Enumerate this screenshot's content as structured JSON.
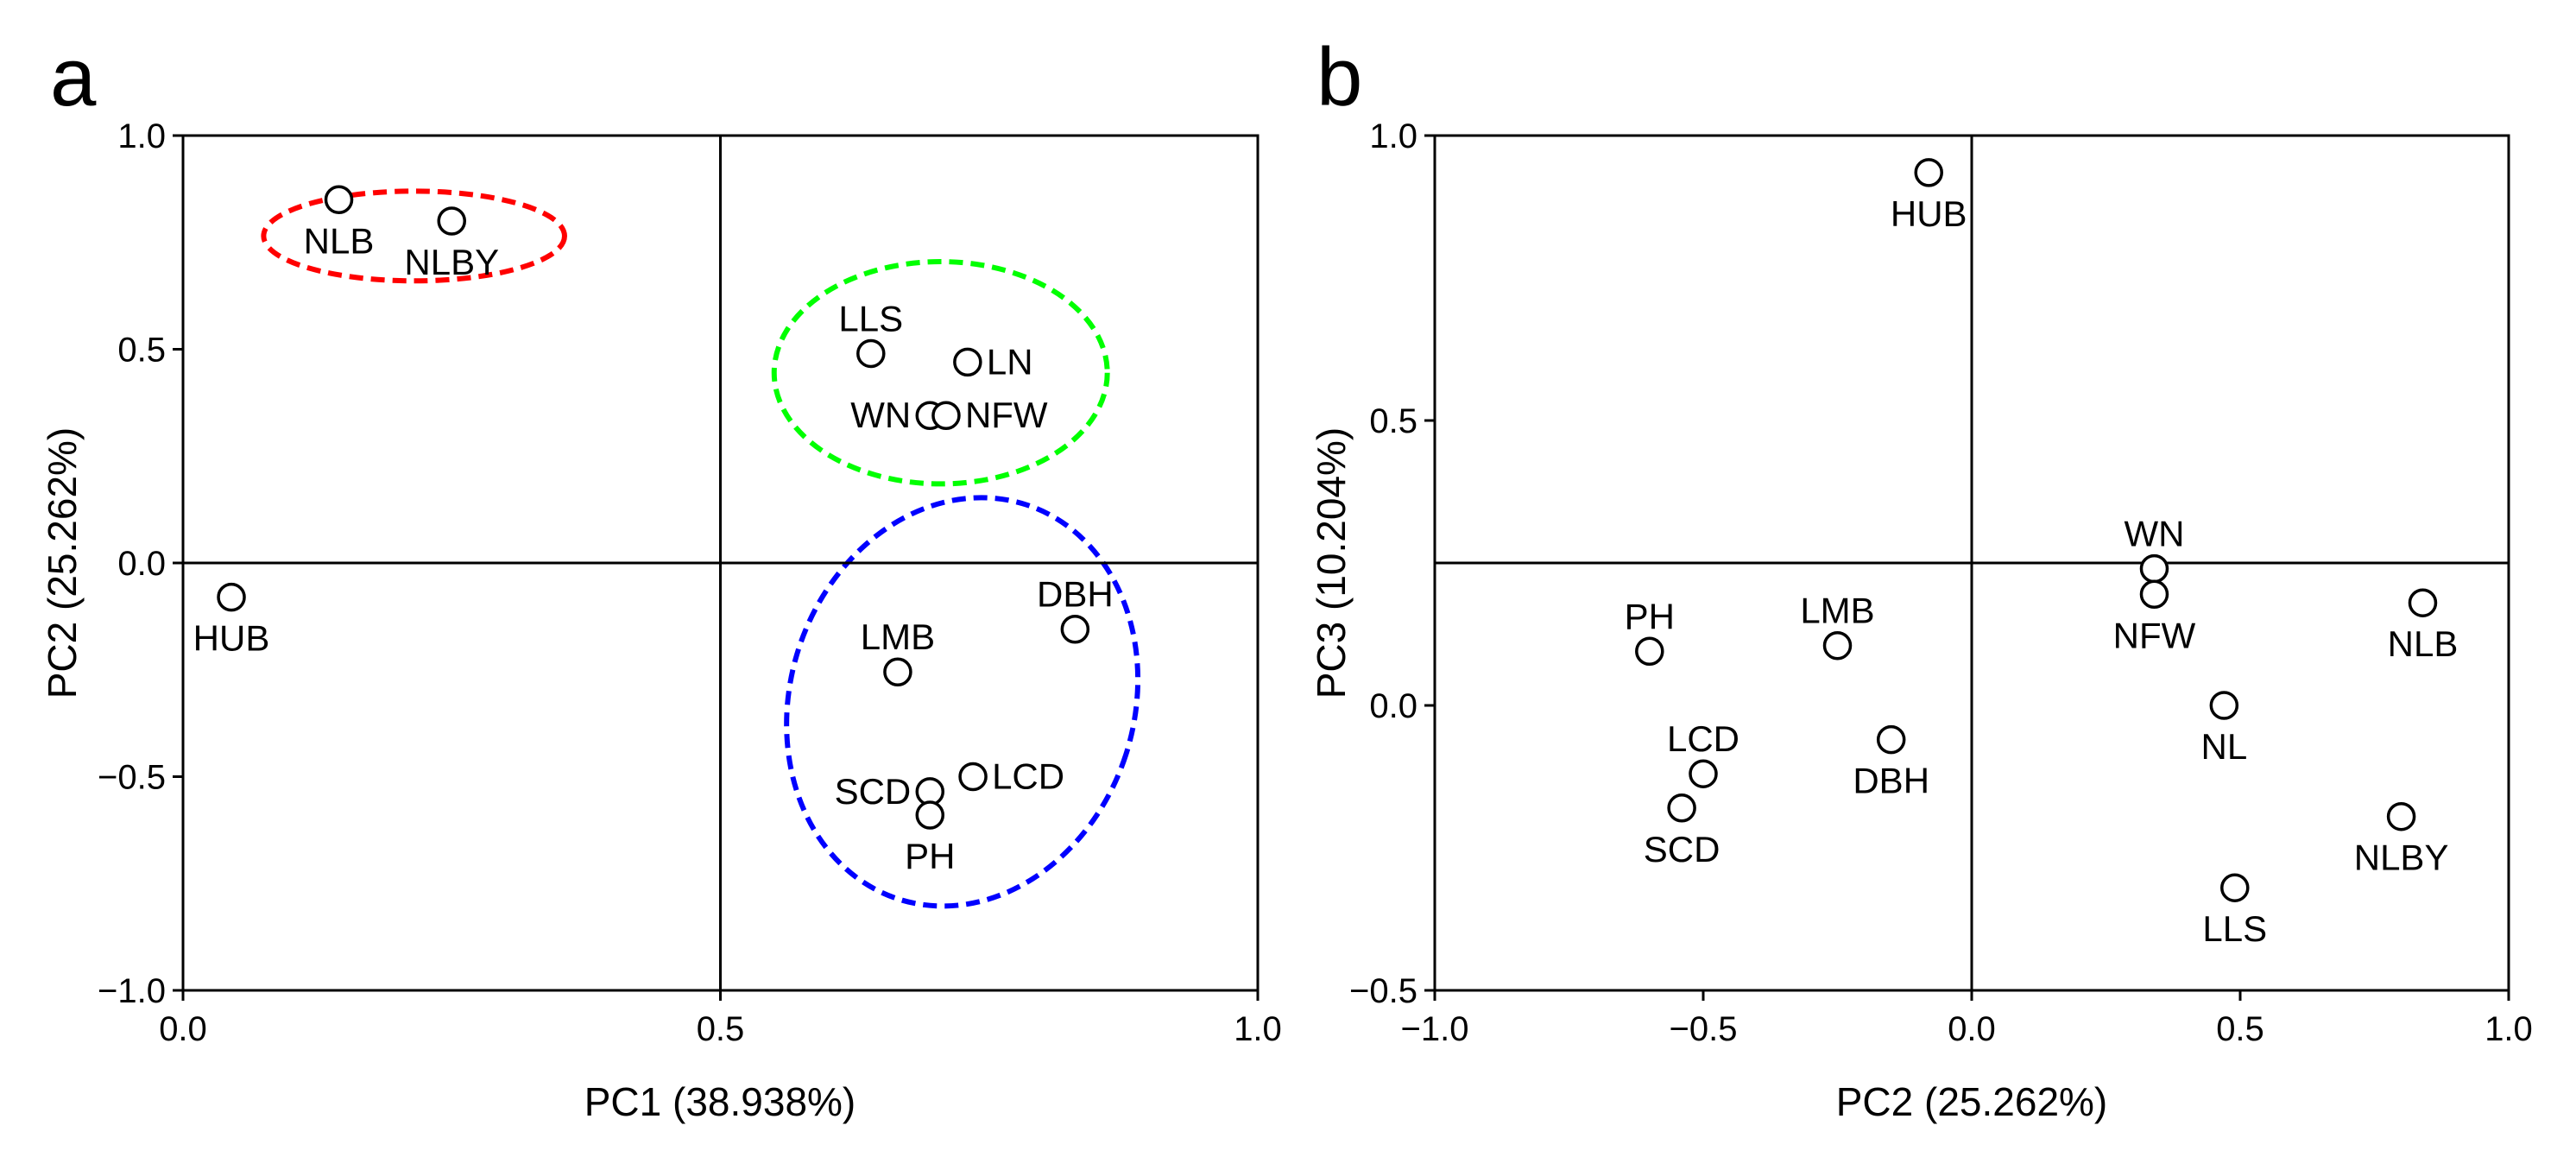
{
  "chart_data": [
    {
      "panel": "a",
      "type": "scatter",
      "xlabel": "PC1 (38.938%)",
      "ylabel": "PC2 (25.262%)",
      "xlim": [
        0.0,
        1.0
      ],
      "ylim": [
        -1.0,
        1.0
      ],
      "x_ticks": [
        0.0,
        0.5,
        1.0
      ],
      "x_tick_labels": [
        "0.0",
        "0.5",
        "1.0"
      ],
      "y_ticks": [
        1.0,
        0.5,
        0.0,
        -0.5,
        -1.0
      ],
      "y_tick_labels": [
        "1.0",
        "0.5",
        "0.0",
        "−0.5",
        "−1.0"
      ],
      "reference_lines": {
        "x": 0.5,
        "y": 0.0
      },
      "points": [
        {
          "label": "NLB",
          "x": 0.145,
          "y": 0.85,
          "label_pos": "below"
        },
        {
          "label": "NLBY",
          "x": 0.25,
          "y": 0.8,
          "label_pos": "below"
        },
        {
          "label": "LLS",
          "x": 0.64,
          "y": 0.49,
          "label_pos": "above"
        },
        {
          "label": "LN",
          "x": 0.73,
          "y": 0.47,
          "label_pos": "right"
        },
        {
          "label": "WN",
          "x": 0.695,
          "y": 0.345,
          "label_pos": "left"
        },
        {
          "label": "NFW",
          "x": 0.71,
          "y": 0.345,
          "label_pos": "right"
        },
        {
          "label": "HUB",
          "x": 0.045,
          "y": -0.08,
          "label_pos": "below"
        },
        {
          "label": "DBH",
          "x": 0.83,
          "y": -0.155,
          "label_pos": "above"
        },
        {
          "label": "LMB",
          "x": 0.665,
          "y": -0.255,
          "label_pos": "above"
        },
        {
          "label": "LCD",
          "x": 0.735,
          "y": -0.5,
          "label_pos": "right"
        },
        {
          "label": "SCD",
          "x": 0.695,
          "y": -0.535,
          "label_pos": "left"
        },
        {
          "label": "PH",
          "x": 0.695,
          "y": -0.59,
          "label_pos": "below"
        }
      ],
      "groups": [
        {
          "name": "red group",
          "color": "#ff0000",
          "members": [
            "NLB",
            "NLBY"
          ],
          "cx": 0.215,
          "cy": 0.765,
          "rx": 0.14,
          "ry": 0.105,
          "rotate": 0
        },
        {
          "name": "green group",
          "color": "#00ff00",
          "members": [
            "LLS",
            "LN",
            "WN",
            "NFW"
          ],
          "cx": 0.705,
          "cy": 0.445,
          "rx": 0.155,
          "ry": 0.26,
          "rotate": 0
        },
        {
          "name": "blue group",
          "color": "#0000ff",
          "members": [
            "DBH",
            "LMB",
            "LCD",
            "SCD",
            "PH"
          ],
          "cx": 0.725,
          "cy": -0.325,
          "rx": 0.16,
          "ry": 0.485,
          "rotate": 18
        }
      ]
    },
    {
      "panel": "b",
      "type": "scatter",
      "xlabel": "PC2 (25.262%)",
      "ylabel": "PC3 (10.204%)",
      "xlim": [
        -1.0,
        1.0
      ],
      "ylim": [
        -0.5,
        1.0
      ],
      "x_ticks": [
        -1.0,
        -0.5,
        0.0,
        0.5,
        1.0
      ],
      "x_tick_labels": [
        "−1.0",
        "−0.5",
        "0.0",
        "0.5",
        "1.0"
      ],
      "y_ticks": [
        1.0,
        0.5,
        0.0,
        -0.5
      ],
      "y_tick_labels": [
        "1.0",
        "0.5",
        "0.0",
        "−0.5"
      ],
      "reference_lines": {
        "x": 0.0,
        "y": 0.25
      },
      "points": [
        {
          "label": "HUB",
          "x": -0.08,
          "y": 0.935,
          "label_pos": "below"
        },
        {
          "label": "WN",
          "x": 0.34,
          "y": 0.24,
          "label_pos": "above"
        },
        {
          "label": "NFW",
          "x": 0.34,
          "y": 0.195,
          "label_pos": "below"
        },
        {
          "label": "NLB",
          "x": 0.84,
          "y": 0.18,
          "label_pos": "below"
        },
        {
          "label": "PH",
          "x": -0.6,
          "y": 0.095,
          "label_pos": "above"
        },
        {
          "label": "LMB",
          "x": -0.25,
          "y": 0.105,
          "label_pos": "above"
        },
        {
          "label": "NL",
          "x": 0.47,
          "y": 0.0,
          "label_pos": "below"
        },
        {
          "label": "LCD",
          "x": -0.5,
          "y": -0.12,
          "label_pos": "above"
        },
        {
          "label": "DBH",
          "x": -0.15,
          "y": -0.06,
          "label_pos": "below"
        },
        {
          "label": "SCD",
          "x": -0.54,
          "y": -0.18,
          "label_pos": "below"
        },
        {
          "label": "NLBY",
          "x": 0.8,
          "y": -0.195,
          "label_pos": "below"
        },
        {
          "label": "LLS",
          "x": 0.49,
          "y": -0.32,
          "label_pos": "below"
        }
      ]
    }
  ]
}
